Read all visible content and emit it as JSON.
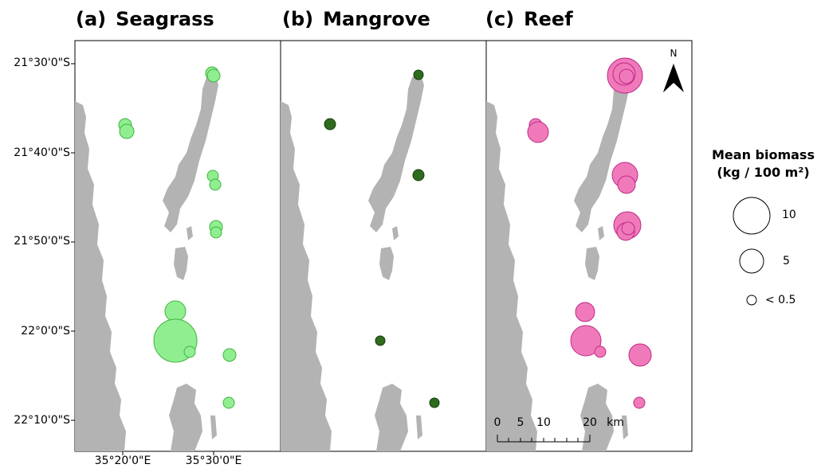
{
  "panels": [
    {
      "letter": "(a)",
      "name": "Seagrass",
      "color": "#90ee90",
      "stroke": "#3fb53f"
    },
    {
      "letter": "(b)",
      "name": "Mangrove",
      "color": "#2e6b1e",
      "stroke": "#163d0c"
    },
    {
      "letter": "(c)",
      "name": "Reef",
      "color": "#f07ab9",
      "stroke": "#c0288a"
    }
  ],
  "y_axis_labels": [
    "21°30'0\"S",
    "21°40'0\"S",
    "21°50'0\"S",
    "22°0'0\"S",
    "22°10'0\"S"
  ],
  "x_axis_labels": [
    "35°20'0\"E",
    "35°30'0\"E"
  ],
  "legend": {
    "title_line1": "Mean biomass",
    "title_line2": "(kg / 100 m²)",
    "items": [
      {
        "label": "10",
        "value": 10
      },
      {
        "label": "5",
        "value": 5
      },
      {
        "label": "< 0.5",
        "value": 0.5
      }
    ]
  },
  "north_arrow": {
    "label": "N",
    "icon": "north-arrow-icon"
  },
  "scale_bar": {
    "ticks": [
      "0",
      "5",
      "10",
      "20"
    ],
    "unit": "km"
  },
  "land_color": "#b3b3b3"
}
